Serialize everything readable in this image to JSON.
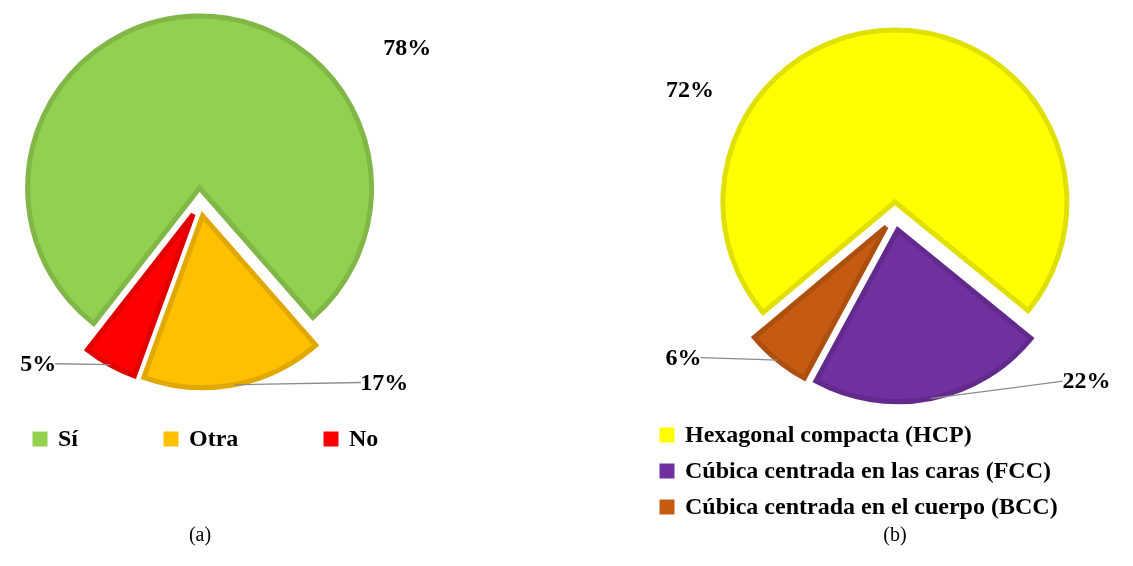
{
  "chart_data": [
    {
      "type": "pie",
      "categories": [
        "Sí",
        "Otra",
        "No"
      ],
      "values": [
        78,
        17,
        5
      ],
      "colors": [
        "#92d050",
        "#ffc000",
        "#ff0000"
      ],
      "value_labels": [
        "78%",
        "17%",
        "5%"
      ],
      "legend": "bottom",
      "annotations": [
        "(a)"
      ]
    },
    {
      "type": "pie",
      "categories": [
        "Hexagonal compacta (HCP)",
        "Cúbica centrada en las caras (FCC)",
        "Cúbica centrada en el cuerpo (BCC)"
      ],
      "values": [
        72,
        22,
        6
      ],
      "colors": [
        "#ffff00",
        "#7030a0",
        "#c55a11"
      ],
      "value_labels": [
        "72%",
        "22%",
        "6%"
      ],
      "legend": "bottom",
      "annotations": [
        "(b)"
      ]
    }
  ]
}
